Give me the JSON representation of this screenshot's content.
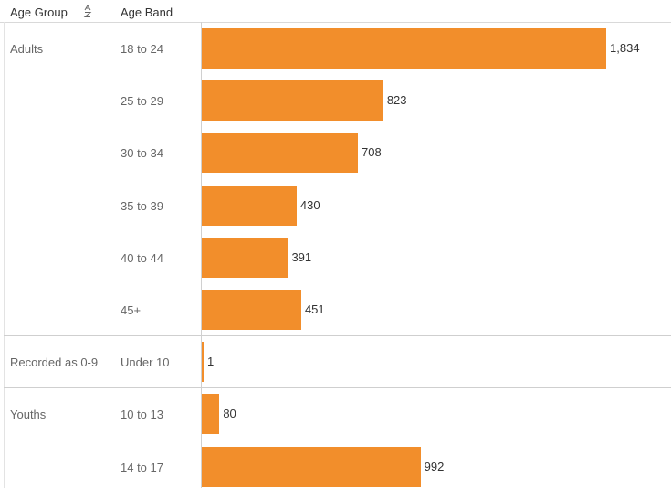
{
  "header": {
    "age_group": "Age Group",
    "age_band": "Age Band",
    "sort_icon": "sort-alpha-icon"
  },
  "colors": {
    "bar": "#f28e2b"
  },
  "chart_data": {
    "type": "bar",
    "orientation": "horizontal",
    "xlim": [
      0,
      1900
    ],
    "groups": [
      {
        "name": "Adults",
        "bands": [
          {
            "band": "18 to 24",
            "value": 1834,
            "label": "1,834"
          },
          {
            "band": "25 to 29",
            "value": 823,
            "label": "823"
          },
          {
            "band": "30 to 34",
            "value": 708,
            "label": "708"
          },
          {
            "band": "35 to 39",
            "value": 430,
            "label": "430"
          },
          {
            "band": "40 to 44",
            "value": 391,
            "label": "391"
          },
          {
            "band": "45+",
            "value": 451,
            "label": "451"
          }
        ]
      },
      {
        "name": "Recorded as 0-9",
        "bands": [
          {
            "band": "Under 10",
            "value": 1,
            "label": "1"
          }
        ]
      },
      {
        "name": "Youths",
        "bands": [
          {
            "band": "10 to 13",
            "value": 80,
            "label": "80"
          },
          {
            "band": "14 to 17",
            "value": 992,
            "label": "992"
          }
        ]
      }
    ]
  }
}
